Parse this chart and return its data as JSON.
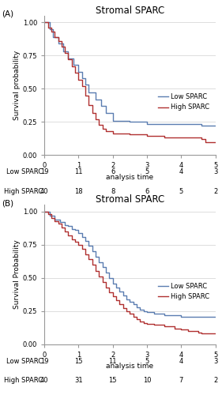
{
  "title": "Stromal SPARC",
  "xlabel": "analysis time",
  "panel_A": {
    "label": "(A)",
    "ylabel": "Survival probability",
    "low_color": "#5b7db1",
    "high_color": "#b03030",
    "low_x": [
      0,
      0.15,
      0.25,
      0.4,
      0.55,
      0.7,
      0.85,
      1.0,
      1.1,
      1.2,
      1.3,
      1.5,
      1.65,
      1.8,
      2.0,
      2.5,
      3.0,
      4.6,
      5.0
    ],
    "low_y": [
      1.0,
      0.95,
      0.89,
      0.84,
      0.78,
      0.73,
      0.68,
      0.63,
      0.58,
      0.53,
      0.47,
      0.42,
      0.37,
      0.32,
      0.26,
      0.25,
      0.235,
      0.22,
      0.22
    ],
    "high_x": [
      0,
      0.1,
      0.2,
      0.3,
      0.4,
      0.5,
      0.6,
      0.7,
      0.8,
      0.9,
      1.0,
      1.1,
      1.2,
      1.3,
      1.4,
      1.5,
      1.6,
      1.7,
      1.8,
      2.0,
      2.5,
      3.0,
      3.5,
      4.6,
      4.7,
      5.0
    ],
    "high_y": [
      1.0,
      0.96,
      0.93,
      0.89,
      0.86,
      0.82,
      0.77,
      0.72,
      0.67,
      0.62,
      0.57,
      0.52,
      0.45,
      0.38,
      0.32,
      0.27,
      0.23,
      0.2,
      0.18,
      0.165,
      0.155,
      0.145,
      0.135,
      0.12,
      0.1,
      0.1
    ],
    "risk_labels": [
      "Low SPARC",
      "High SPARC"
    ],
    "risk_times": [
      0,
      1,
      2,
      3,
      4,
      5
    ],
    "risk_low": [
      19,
      11,
      6,
      5,
      4,
      3
    ],
    "risk_high": [
      40,
      18,
      8,
      6,
      5,
      2
    ]
  },
  "panel_B": {
    "label": "(B)",
    "ylabel": "Survival Probability",
    "low_color": "#5b7db1",
    "high_color": "#b03030",
    "low_x": [
      0,
      0.15,
      0.3,
      0.45,
      0.6,
      0.7,
      0.8,
      0.9,
      1.0,
      1.1,
      1.2,
      1.3,
      1.4,
      1.5,
      1.6,
      1.7,
      1.8,
      1.9,
      2.0,
      2.1,
      2.2,
      2.3,
      2.4,
      2.5,
      2.6,
      2.7,
      2.8,
      2.9,
      3.0,
      3.2,
      3.5,
      4.0,
      4.2,
      4.5,
      5.0
    ],
    "low_y": [
      1.0,
      0.97,
      0.94,
      0.92,
      0.9,
      0.89,
      0.87,
      0.86,
      0.84,
      0.81,
      0.78,
      0.74,
      0.7,
      0.66,
      0.62,
      0.58,
      0.54,
      0.5,
      0.46,
      0.43,
      0.4,
      0.37,
      0.34,
      0.32,
      0.3,
      0.28,
      0.26,
      0.25,
      0.24,
      0.23,
      0.22,
      0.21,
      0.21,
      0.21,
      0.21
    ],
    "high_x": [
      0,
      0.1,
      0.2,
      0.3,
      0.4,
      0.5,
      0.6,
      0.7,
      0.8,
      0.9,
      1.0,
      1.1,
      1.2,
      1.3,
      1.4,
      1.5,
      1.6,
      1.7,
      1.8,
      1.9,
      2.0,
      2.1,
      2.2,
      2.3,
      2.4,
      2.5,
      2.6,
      2.7,
      2.8,
      2.9,
      3.0,
      3.2,
      3.5,
      3.8,
      4.0,
      4.2,
      4.5,
      4.6,
      4.7,
      5.0
    ],
    "high_y": [
      1.0,
      0.98,
      0.95,
      0.93,
      0.91,
      0.88,
      0.85,
      0.82,
      0.79,
      0.77,
      0.75,
      0.72,
      0.68,
      0.64,
      0.6,
      0.55,
      0.51,
      0.47,
      0.43,
      0.39,
      0.36,
      0.33,
      0.3,
      0.27,
      0.25,
      0.23,
      0.21,
      0.19,
      0.17,
      0.16,
      0.155,
      0.145,
      0.135,
      0.12,
      0.11,
      0.1,
      0.09,
      0.085,
      0.08,
      0.08
    ],
    "risk_labels": [
      "Low SPARC",
      "High SPARC"
    ],
    "risk_times": [
      0,
      1,
      2,
      3,
      4,
      5
    ],
    "risk_low": [
      19,
      15,
      11,
      5,
      4,
      3
    ],
    "risk_high": [
      40,
      31,
      15,
      10,
      7,
      2
    ]
  },
  "ylim": [
    0.0,
    1.05
  ],
  "xlim": [
    0,
    5
  ],
  "yticks": [
    0.0,
    0.25,
    0.5,
    0.75,
    1.0
  ],
  "xticks": [
    0,
    1,
    2,
    3,
    4,
    5
  ],
  "grid_color": "#d0d0d0",
  "bg_color": "#ffffff",
  "font_size": 6.5,
  "title_font_size": 8.5
}
